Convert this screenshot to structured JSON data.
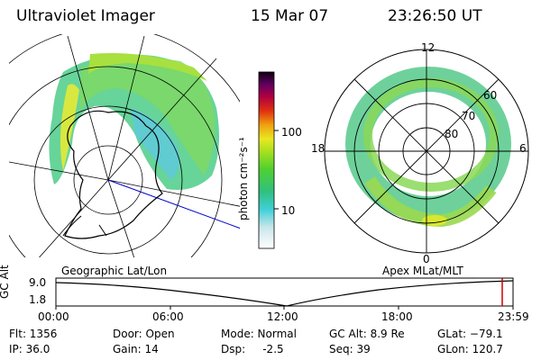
{
  "header": {
    "title": "Ultraviolet Imager",
    "date": "15 Mar 07",
    "time": "23:26:50 UT"
  },
  "colorbar": {
    "unit_label": "photon cm⁻²s⁻¹",
    "ticks": [
      "100",
      "10"
    ]
  },
  "polar_plot": {
    "top_label": "12",
    "bottom_label": "0",
    "left_label": "18",
    "right_label": "6",
    "lat_labels": [
      "60",
      "70",
      "80"
    ]
  },
  "map_caption": "Geographic Lat/Lon",
  "polar_caption": "Apex MLat/MLT",
  "altitude_plot": {
    "ylabel": "GC Alt",
    "y_ticks": [
      "9.0",
      "1.8"
    ],
    "x_ticks": [
      "00:00",
      "06:00",
      "12:00",
      "18:00",
      "23:59"
    ],
    "marker_color": "#cc0000"
  },
  "info": {
    "flt": "Flt: 1356",
    "ip": "IP: 36.0",
    "door": "Door: Open",
    "gain": "Gain: 14",
    "mode": "Mode: Normal",
    "dsp": "Dsp:     -2.5",
    "gc_alt": "GC Alt: 8.9 Re",
    "seq": "Seq: 39",
    "glat": "GLat: −79.1",
    "glon": "GLon: 120.7"
  }
}
